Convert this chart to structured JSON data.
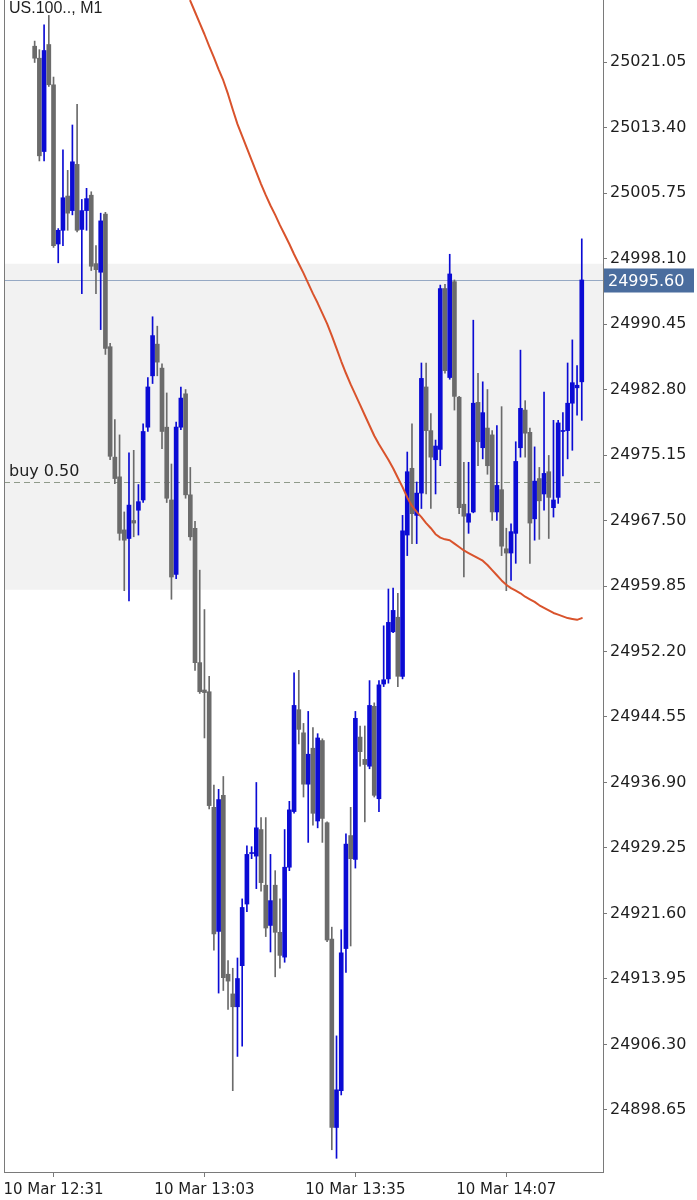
{
  "chart_data": {
    "type": "candlestick",
    "title": "US.100.., M1",
    "categories": [
      null,
      null,
      null,
      null,
      "10 Mar 12:31",
      null,
      null,
      null,
      null,
      null,
      null,
      null,
      null,
      null,
      null,
      null,
      null,
      null,
      null,
      null,
      null,
      null,
      null,
      null,
      null,
      null,
      null,
      null,
      null,
      null,
      null,
      null,
      null,
      null,
      null,
      null,
      "10 Mar 13:03",
      null,
      null,
      null,
      null,
      null,
      null,
      null,
      null,
      null,
      null,
      null,
      null,
      null,
      null,
      null,
      null,
      null,
      null,
      null,
      null,
      null,
      null,
      null,
      null,
      null,
      null,
      null,
      null,
      null,
      null,
      null,
      "10 Mar 13:35",
      null,
      null,
      null,
      null,
      null,
      null,
      null,
      null,
      null,
      null,
      null,
      null,
      null,
      null,
      null,
      null,
      null,
      null,
      null,
      null,
      null,
      null,
      null,
      null,
      null,
      null,
      null,
      null,
      null,
      null,
      null,
      "10 Mar 14:07",
      null,
      null,
      null,
      null,
      null,
      null,
      null,
      null,
      null,
      null,
      null,
      null,
      null,
      null,
      null,
      null
    ],
    "ohlc": [
      [
        25022.9,
        25023.5,
        25021.0,
        25021.5
      ],
      [
        25021.5,
        25022.5,
        25009.5,
        25010.1
      ],
      [
        25010.6,
        25025.4,
        25009.5,
        25022.4
      ],
      [
        25023.1,
        25026.5,
        25018.2,
        25018.4
      ],
      [
        25018.4,
        25019.3,
        24999.4,
        24999.6
      ],
      [
        24999.8,
        25001.6,
        24997.6,
        25001.4
      ],
      [
        25001.4,
        25010.8,
        24999.6,
        25005.2
      ],
      [
        25005.4,
        25008.4,
        25001.4,
        25003.4
      ],
      [
        25003.7,
        25013.7,
        25003.2,
        25009.4
      ],
      [
        25009.1,
        25016.1,
        25001.2,
        25001.4
      ],
      [
        25001.5,
        25005.0,
        24994.0,
        25003.7
      ],
      [
        25003.7,
        25006.3,
        25001.4,
        25005.1
      ],
      [
        25005.5,
        25005.9,
        24996.7,
        24997.2
      ],
      [
        24997.5,
        24999.6,
        24994.0,
        24996.8
      ],
      [
        24996.5,
        25003.4,
        24989.8,
        25002.5
      ],
      [
        25003.3,
        25003.5,
        24986.9,
        24987.6
      ],
      [
        24987.8,
        24988.2,
        24974.6,
        24975.0
      ],
      [
        24974.9,
        24979.3,
        24971.8,
        24972.4
      ],
      [
        24972.6,
        24977.5,
        24965.2,
        24966.0
      ],
      [
        24966.4,
        24968.5,
        24959.3,
        24965.2
      ],
      [
        24965.4,
        24975.4,
        24958.1,
        24969.3
      ],
      [
        24967.5,
        24975.7,
        24965.6,
        24967.2
      ],
      [
        24968.7,
        24971.7,
        24965.8,
        24969.7
      ],
      [
        24969.9,
        24978.8,
        24969.6,
        24977.9
      ],
      [
        24978.4,
        24984.2,
        24977.9,
        24983.1
      ],
      [
        24984.4,
        24991.3,
        24983.5,
        24989.1
      ],
      [
        24988.1,
        24990.2,
        24984.4,
        24986.0
      ],
      [
        24985.3,
        24985.8,
        24975.9,
        24977.9
      ],
      [
        24978.4,
        24982.4,
        24969.6,
        24970.1
      ],
      [
        24969.9,
        24974.1,
        24958.3,
        24960.9
      ],
      [
        24961.2,
        24979.0,
        24960.7,
        24978.4
      ],
      [
        24978.4,
        24983.1,
        24978.1,
        24981.8
      ],
      [
        24982.3,
        24982.8,
        24970.1,
        24970.5
      ],
      [
        24970.5,
        24973.7,
        24965.2,
        24965.6
      ],
      [
        24966.6,
        24967.4,
        24950.0,
        24950.9
      ],
      [
        24950.9,
        24961.7,
        24947.3,
        24947.5
      ],
      [
        24947.7,
        24957.1,
        24942.1,
        24947.4
      ],
      [
        24947.5,
        24949.3,
        24933.8,
        24934.2
      ],
      [
        24934.0,
        24936.6,
        24917.3,
        24919.2
      ],
      [
        24919.5,
        24936.1,
        24912.3,
        24934.9
      ],
      [
        24935.4,
        24937.6,
        24912.6,
        24914.1
      ],
      [
        24914.5,
        24916.1,
        24910.4,
        24913.7
      ],
      [
        24912.2,
        24915.2,
        24900.9,
        24910.7
      ],
      [
        24910.7,
        24916.4,
        24904.9,
        24914.0
      ],
      [
        24915.5,
        24923.3,
        24906.1,
        24922.3
      ],
      [
        24922.7,
        24929.5,
        24921.8,
        24928.5
      ],
      [
        24928.6,
        24929.4,
        24928.0,
        24928.7
      ],
      [
        24928.3,
        24936.9,
        24924.5,
        24931.6
      ],
      [
        24931.4,
        24932.8,
        24924.2,
        24925.2
      ],
      [
        24924.9,
        24932.8,
        24918.9,
        24919.9
      ],
      [
        24920.2,
        24928.5,
        24917.1,
        24923.1
      ],
      [
        24924.9,
        24926.6,
        24914.2,
        24919.4
      ],
      [
        24919.4,
        24923.3,
        24915.2,
        24916.7
      ],
      [
        24916.5,
        24931.4,
        24915.9,
        24927.0
      ],
      [
        24927.0,
        24934.7,
        24926.6,
        24933.7
      ],
      [
        24933.5,
        24949.7,
        24933.3,
        24945.9
      ],
      [
        24945.4,
        24950.0,
        24941.4,
        24943.1
      ],
      [
        24942.7,
        24943.8,
        24935.2,
        24936.7
      ],
      [
        24936.7,
        24945.2,
        24929.9,
        24940.2
      ],
      [
        24940.9,
        24943.3,
        24931.9,
        24933.3
      ],
      [
        24932.4,
        24942.6,
        24931.6,
        24942.1
      ],
      [
        24941.8,
        24942.0,
        24929.9,
        24932.7
      ],
      [
        24932.2,
        24932.3,
        24918.3,
        24918.5
      ],
      [
        24918.6,
        24920.0,
        24894.0,
        24896.6
      ],
      [
        24896.6,
        24907.3,
        24893.0,
        24901.0
      ],
      [
        24900.9,
        24919.7,
        24900.4,
        24917.0
      ],
      [
        24917.5,
        24930.9,
        24914.7,
        24929.7
      ],
      [
        24930.7,
        24934.0,
        24917.8,
        24928.0
      ],
      [
        24927.9,
        24945.2,
        24926.9,
        24944.4
      ],
      [
        24942.2,
        24943.5,
        24938.8,
        24940.5
      ],
      [
        24939.6,
        24943.5,
        24932.3,
        24939.0
      ],
      [
        24938.8,
        24948.8,
        24938.5,
        24945.9
      ],
      [
        24945.8,
        24946.2,
        24935.2,
        24935.4
      ],
      [
        24935.0,
        24948.8,
        24933.5,
        24948.3
      ],
      [
        24948.4,
        24955.2,
        24948.1,
        24948.9
      ],
      [
        24949.0,
        24959.5,
        24948.5,
        24955.6
      ],
      [
        24954.5,
        24959.6,
        24954.4,
        24957.0
      ],
      [
        24956.2,
        24959.0,
        24948.1,
        24949.3
      ],
      [
        24949.3,
        24968.1,
        24949.0,
        24966.3
      ],
      [
        24965.8,
        24975.5,
        24963.4,
        24973.2
      ],
      [
        24973.6,
        24978.8,
        24964.8,
        24968.3
      ],
      [
        24968.1,
        24972.0,
        24964.8,
        24970.7
      ],
      [
        24970.7,
        24985.9,
        24968.9,
        24984.1
      ],
      [
        24983.1,
        24985.9,
        24970.6,
        24978.0
      ],
      [
        24978.0,
        24980.0,
        24968.9,
        24974.9
      ],
      [
        24974.6,
        24976.9,
        24970.6,
        24976.2
      ],
      [
        24975.8,
        24995.0,
        24973.9,
        24994.6
      ],
      [
        24994.6,
        24995.1,
        24984.7,
        24985.0
      ],
      [
        24984.2,
        24998.6,
        24984.0,
        24996.3
      ],
      [
        24995.4,
        24995.6,
        24980.4,
        24982.0
      ],
      [
        24981.9,
        24982.0,
        24968.3,
        24969.0
      ],
      [
        24969.4,
        24974.3,
        24960.9,
        24968.0
      ],
      [
        24967.3,
        24974.3,
        24966.0,
        24968.3
      ],
      [
        24968.5,
        24990.9,
        24968.4,
        24981.2
      ],
      [
        24981.3,
        24984.7,
        24973.9,
        24976.7
      ],
      [
        24976.0,
        24983.7,
        24974.7,
        24980.1
      ],
      [
        24978.3,
        24982.8,
        24972.9,
        24973.9
      ],
      [
        24977.5,
        24978.0,
        24967.5,
        24968.5
      ],
      [
        24968.5,
        24978.6,
        24967.5,
        24971.6
      ],
      [
        24971.1,
        24980.8,
        24963.4,
        24964.5
      ],
      [
        24964.2,
        24966.6,
        24959.3,
        24963.7
      ],
      [
        24963.7,
        24967.1,
        24960.5,
        24966.2
      ],
      [
        24966.0,
        24976.7,
        24962.5,
        24974.4
      ],
      [
        24976.0,
        24987.4,
        24974.9,
        24980.6
      ],
      [
        24980.4,
        24981.5,
        24974.9,
        24977.7
      ],
      [
        24977.8,
        24978.3,
        24962.5,
        24967.2
      ],
      [
        24967.7,
        24976.1,
        24965.2,
        24972.1
      ],
      [
        24972.4,
        24973.7,
        24965.3,
        24969.8
      ],
      [
        24970.6,
        24982.5,
        24968.7,
        24973.0
      ],
      [
        24973.2,
        24975.1,
        24965.4,
        24970.2
      ],
      [
        24969.0,
        24979.2,
        24967.9,
        24969.9
      ],
      [
        24970.2,
        24979.2,
        24969.5,
        24978.9
      ],
      [
        24977.9,
        24980.1,
        24972.7,
        24978.0
      ],
      [
        24978.0,
        24985.9,
        24974.7,
        24981.2
      ],
      [
        24981.2,
        24988.6,
        24975.7,
        24983.6
      ],
      [
        24983.0,
        24985.6,
        24979.8,
        24983.3
      ],
      [
        24983.7,
        25000.4,
        24979.2,
        24995.6
      ]
    ],
    "colors": [
      "#6b6b6b",
      "#6b6b6b",
      "#0b0bd4",
      "#6b6b6b",
      "#6b6b6b",
      "#0b0bd4",
      "#0b0bd4",
      "#6b6b6b",
      "#0b0bd4",
      "#6b6b6b",
      "#0b0bd4",
      "#0b0bd4",
      "#6b6b6b",
      "#6b6b6b",
      "#0b0bd4",
      "#6b6b6b",
      "#6b6b6b",
      "#6b6b6b",
      "#6b6b6b",
      "#6b6b6b",
      "#0b0bd4",
      "#6b6b6b",
      "#0b0bd4",
      "#0b0bd4",
      "#0b0bd4",
      "#0b0bd4",
      "#6b6b6b",
      "#6b6b6b",
      "#6b6b6b",
      "#6b6b6b",
      "#0b0bd4",
      "#0b0bd4",
      "#6b6b6b",
      "#6b6b6b",
      "#6b6b6b",
      "#6b6b6b",
      "#6b6b6b",
      "#6b6b6b",
      "#6b6b6b",
      "#0b0bd4",
      "#6b6b6b",
      "#6b6b6b",
      "#6b6b6b",
      "#0b0bd4",
      "#0b0bd4",
      "#0b0bd4",
      "#0b0bd4",
      "#0b0bd4",
      "#6b6b6b",
      "#6b6b6b",
      "#0b0bd4",
      "#6b6b6b",
      "#6b6b6b",
      "#0b0bd4",
      "#0b0bd4",
      "#0b0bd4",
      "#6b6b6b",
      "#6b6b6b",
      "#0b0bd4",
      "#6b6b6b",
      "#0b0bd4",
      "#6b6b6b",
      "#6b6b6b",
      "#6b6b6b",
      "#0b0bd4",
      "#0b0bd4",
      "#0b0bd4",
      "#6b6b6b",
      "#0b0bd4",
      "#6b6b6b",
      "#6b6b6b",
      "#0b0bd4",
      "#6b6b6b",
      "#0b0bd4",
      "#0b0bd4",
      "#0b0bd4",
      "#0b0bd4",
      "#6b6b6b",
      "#0b0bd4",
      "#0b0bd4",
      "#6b6b6b",
      "#0b0bd4",
      "#0b0bd4",
      "#6b6b6b",
      "#6b6b6b",
      "#0b0bd4",
      "#0b0bd4",
      "#6b6b6b",
      "#0b0bd4",
      "#6b6b6b",
      "#6b6b6b",
      "#6b6b6b",
      "#0b0bd4",
      "#0b0bd4",
      "#6b6b6b",
      "#0b0bd4",
      "#6b6b6b",
      "#6b6b6b",
      "#0b0bd4",
      "#6b6b6b",
      "#6b6b6b",
      "#0b0bd4",
      "#0b0bd4",
      "#0b0bd4",
      "#6b6b6b",
      "#6b6b6b",
      "#0b0bd4",
      "#6b6b6b",
      "#0b0bd4",
      "#6b6b6b",
      "#0b0bd4",
      "#0b0bd4",
      "#0b0bd4",
      "#0b0bd4",
      "#0b0bd4",
      "#0b0bd4",
      "#0b0bd4"
    ],
    "series": [
      {
        "type": "line",
        "color": "#d9532c",
        "values": [
          null,
          null,
          null,
          null,
          null,
          null,
          null,
          null,
          null,
          null,
          null,
          null,
          null,
          null,
          null,
          null,
          null,
          null,
          null,
          null,
          null,
          null,
          null,
          null,
          null,
          null,
          null,
          null,
          null,
          null,
          null,
          null,
          null,
          25028.2,
          25026.9,
          25025.6,
          25024.3,
          25022.9,
          25021.6,
          25020.2,
          25018.9,
          25017.3,
          25015.5,
          25013.8,
          25012.4,
          25011.0,
          25009.6,
          25008.2,
          25006.8,
          25005.5,
          25004.3,
          25003.2,
          25002.0,
          25000.9,
          24999.8,
          24998.6,
          24997.5,
          24996.4,
          24995.2,
          24994.0,
          24992.9,
          24991.7,
          24990.5,
          24989.1,
          24987.6,
          24986.1,
          24984.7,
          24983.4,
          24982.2,
          24981.0,
          24979.8,
          24978.6,
          24977.4,
          24976.4,
          24975.5,
          24974.6,
          24973.6,
          24972.5,
          24971.4,
          24970.2,
          24969.2,
          24968.5,
          24967.9,
          24967.2,
          24966.6,
          24965.9,
          24965.5,
          24965.3,
          24965.2,
          24964.8,
          24964.4,
          24964.0,
          24963.7,
          24963.4,
          24963.1,
          24962.8,
          24962.3,
          24961.7,
          24961.1,
          24960.5,
          24960.0,
          24959.6,
          24959.3,
          24959.0,
          24958.6,
          24958.3,
          24958.0,
          24957.6,
          24957.3,
          24957.0,
          24956.7,
          24956.5,
          24956.3,
          24956.1,
          24956.0,
          24955.9,
          24956.1
        ]
      }
    ],
    "ylim": [
      24891.4,
      25028.3
    ],
    "yticks": [
      24898.65,
      {
        "value": 24906.3,
        "label": "24906.30"
      },
      24913.95,
      {
        "value": 24921.6,
        "label": "24921.60"
      },
      24929.25,
      {
        "value": 24936.9,
        "label": "24936.90"
      },
      24944.55,
      {
        "value": 24952.2,
        "label": "24952.20"
      },
      24959.85,
      {
        "value": 24967.5,
        "label": "24967.50"
      },
      24975.15,
      {
        "value": 24982.8,
        "label": "24982.80"
      },
      24990.45,
      {
        "value": 24998.1,
        "label": "24998.10"
      },
      25005.75,
      {
        "value": 25013.4,
        "label": "25013.40"
      },
      25021.05
    ],
    "ref_lines": [
      {
        "axis": "y",
        "value": 24995.6,
        "label": "24995.60",
        "color": "#4a6d9e"
      },
      {
        "axis": "y",
        "value": 24972.0,
        "label": "buy 0.50",
        "color": "#8f9a8a",
        "line_style": "dashed"
      }
    ],
    "bands": [
      {
        "axis": "y",
        "from": 24959.4,
        "to": 24997.5,
        "color": "#f2f2f2"
      }
    ],
    "grid": false,
    "legend": false
  }
}
